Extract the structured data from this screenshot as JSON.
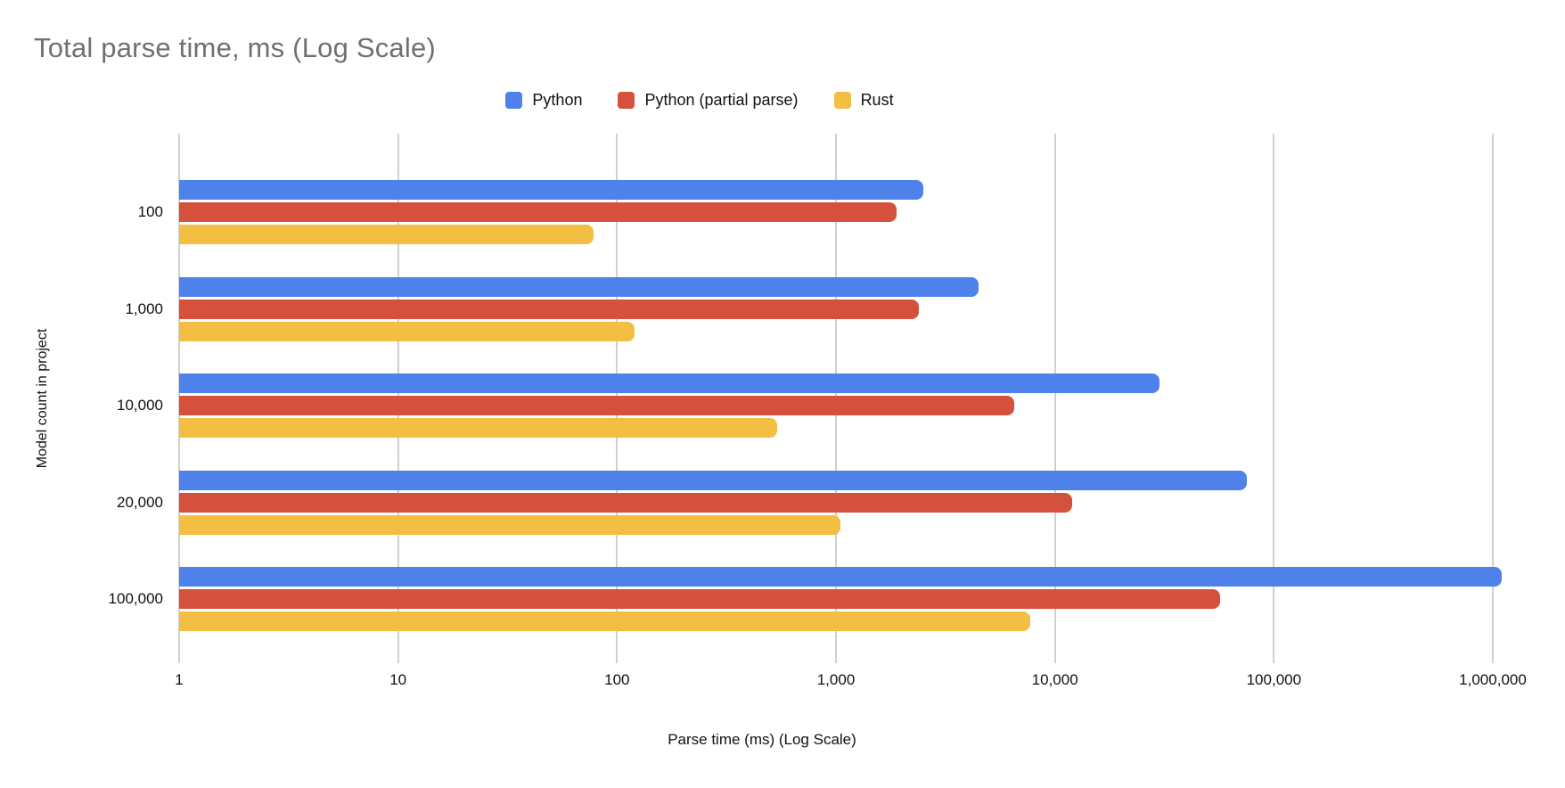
{
  "title": "Total parse time, ms (Log Scale)",
  "legend": {
    "position": "top"
  },
  "chart_data": {
    "type": "bar",
    "orientation": "horizontal",
    "log_scale": true,
    "title": "Total parse time, ms (Log Scale)",
    "xlabel": "Parse time (ms) (Log Scale)",
    "ylabel": "Model count in project",
    "categories": [
      "100",
      "1,000",
      "10,000",
      "20,000",
      "100,000"
    ],
    "series": [
      {
        "name": "Python",
        "color": "#4e82ea",
        "values": [
          2500,
          4500,
          30000,
          75000,
          1100000
        ]
      },
      {
        "name": "Python (partial parse)",
        "color": "#d6503e",
        "values": [
          1900,
          2400,
          6500,
          12000,
          57000
        ]
      },
      {
        "name": "Rust",
        "color": "#f2bf42",
        "values": [
          78,
          120,
          540,
          1050,
          7700
        ]
      }
    ],
    "xlim": [
      1,
      1000000
    ],
    "x_ticks": {
      "values": [
        1,
        10,
        100,
        1000,
        10000,
        100000,
        1000000
      ],
      "labels": [
        "1",
        "10",
        "100",
        "1,000",
        "10,000",
        "100,000",
        "1,000,000"
      ]
    },
    "grid": "vertical",
    "legend_position": "top",
    "colors": {
      "grid": "#d0d0d0",
      "title_text": "#707070",
      "axis_text": "#111111"
    }
  }
}
